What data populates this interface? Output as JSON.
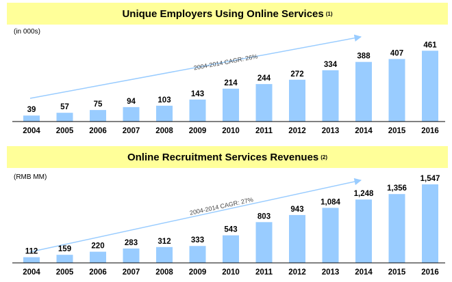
{
  "accent_color": "#99ccff",
  "banner_color": "#ffff99",
  "chart_data": [
    {
      "type": "bar",
      "title": "Unique Employers Using Online Services",
      "title_note": "(1)",
      "unit_label": "(in 000s)",
      "categories": [
        "2004",
        "2005",
        "2006",
        "2007",
        "2008",
        "2009",
        "2010",
        "2011",
        "2012",
        "2013",
        "2014",
        "2015",
        "2016"
      ],
      "values": [
        39,
        57,
        75,
        94,
        103,
        143,
        214,
        244,
        272,
        334,
        388,
        407,
        461
      ],
      "value_labels": [
        "39",
        "57",
        "75",
        "94",
        "103",
        "143",
        "214",
        "244",
        "272",
        "334",
        "388",
        "407",
        "461"
      ],
      "annotation": "2004-2014 CAGR: 26%",
      "ylim": [
        0,
        480
      ]
    },
    {
      "type": "bar",
      "title": "Online Recruitment Services Revenues",
      "title_note": "(2)",
      "unit_label": "(RMB MM)",
      "categories": [
        "2004",
        "2005",
        "2006",
        "2007",
        "2008",
        "2009",
        "2010",
        "2011",
        "2012",
        "2013",
        "2014",
        "2015",
        "2016"
      ],
      "values": [
        112,
        159,
        220,
        283,
        312,
        333,
        543,
        803,
        943,
        1084,
        1248,
        1356,
        1547
      ],
      "value_labels": [
        "112",
        "159",
        "220",
        "283",
        "312",
        "333",
        "543",
        "803",
        "943",
        "1,084",
        "1,248",
        "1,356",
        "1,547"
      ],
      "annotation": "2004-2014 CAGR: 27%",
      "ylim": [
        0,
        1547
      ]
    }
  ]
}
